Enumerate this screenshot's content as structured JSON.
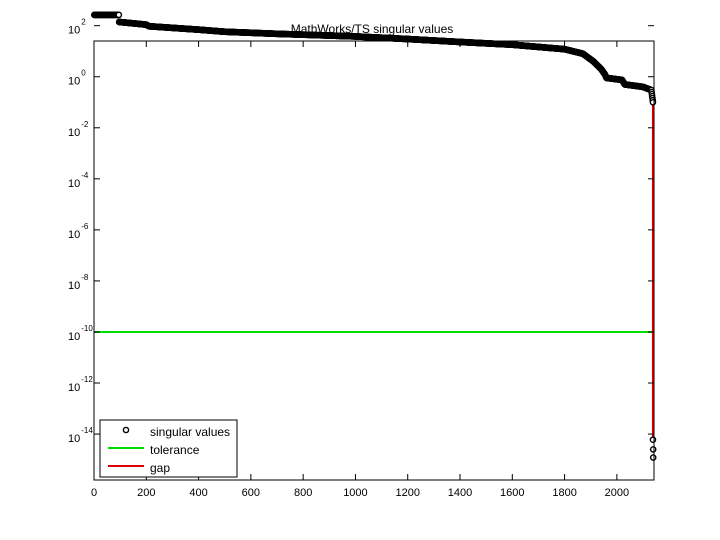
{
  "chart_data": {
    "type": "scatter",
    "title": "MathWorks/TS singular values",
    "xlabel": "",
    "ylabel": "",
    "xlim": [
      0,
      2142
    ],
    "ylim_log10": [
      -15.8,
      1.4
    ],
    "y_scale": "log",
    "grid": false,
    "legend_position": "bottom-left",
    "x_ticks": [
      0,
      200,
      400,
      600,
      800,
      1000,
      1200,
      1400,
      1600,
      1800,
      2000
    ],
    "x_tick_labels": [
      "0",
      "200",
      "400",
      "600",
      "800",
      "1000",
      "1200",
      "1400",
      "1600",
      "1800",
      "2000"
    ],
    "y_ticks_log10": [
      2,
      0,
      -2,
      -4,
      -6,
      -8,
      -10,
      -12,
      -14
    ],
    "y_tick_labels": [
      {
        "base": "10",
        "exp": "2"
      },
      {
        "base": "10",
        "exp": "0"
      },
      {
        "base": "10",
        "exp": "-2"
      },
      {
        "base": "10",
        "exp": "-4"
      },
      {
        "base": "10",
        "exp": "-6"
      },
      {
        "base": "10",
        "exp": "-8"
      },
      {
        "base": "10",
        "exp": "-10"
      },
      {
        "base": "10",
        "exp": "-12"
      },
      {
        "base": "10",
        "exp": "-14"
      }
    ],
    "series": [
      {
        "name": "singular values",
        "marker": "circle",
        "color": "#000000",
        "profile_x": [
          1,
          95,
          96,
          200,
          210,
          400,
          500,
          700,
          1000,
          1200,
          1400,
          1600,
          1800,
          1870,
          1910,
          1940,
          1955,
          1960,
          2020,
          2030,
          2100,
          2132,
          2138
        ],
        "profile_y": [
          265,
          265,
          140,
          110,
          95,
          70,
          58,
          48,
          38,
          30,
          23,
          18,
          12,
          8,
          4,
          2,
          1.2,
          0.9,
          0.75,
          0.5,
          0.4,
          0.3,
          0.1
        ],
        "tail_points": [
          {
            "x": 2138,
            "y": 6e-15
          },
          {
            "x": 2139,
            "y": 2.5e-15
          },
          {
            "x": 2139,
            "y": 1.2e-15
          }
        ]
      },
      {
        "name": "tolerance",
        "color": "#00dd00",
        "y": 1e-10
      },
      {
        "name": "gap",
        "color": "#dd0000",
        "x": 2138,
        "y_range": [
          0.1,
          6e-15
        ]
      }
    ]
  }
}
